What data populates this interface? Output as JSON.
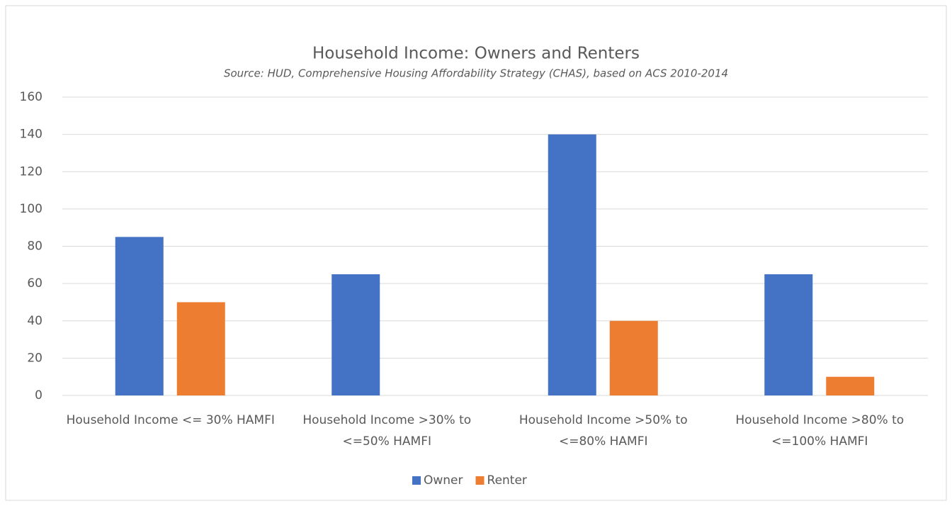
{
  "chart_data": {
    "type": "bar",
    "title": "Household Income: Owners and Renters",
    "subtitle": "Source: HUD, Comprehensive Housing Affordability Strategy (CHAS), based on ACS 2010-2014",
    "categories": [
      "Household Income <= 30% HAMFI",
      "Household Income >30% to <=50% HAMFI",
      "Household Income >50% to <=80% HAMFI",
      "Household Income >80% to <=100% HAMFI"
    ],
    "series": [
      {
        "name": "Owner",
        "color": "#4472c4",
        "values": [
          85,
          65,
          140,
          65
        ]
      },
      {
        "name": "Renter",
        "color": "#ed7d31",
        "values": [
          50,
          0,
          40,
          10
        ]
      }
    ],
    "ylim": [
      0,
      160
    ],
    "yticks": [
      0,
      20,
      40,
      60,
      80,
      100,
      120,
      140,
      160
    ],
    "grid": true,
    "legend": "bottom"
  }
}
